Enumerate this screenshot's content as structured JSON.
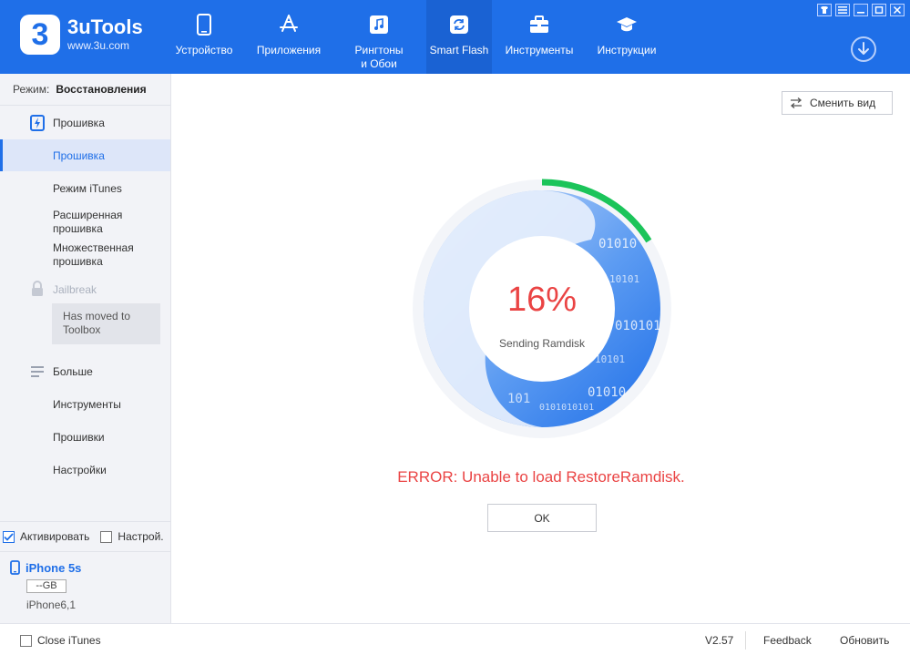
{
  "app": {
    "logo_char": "3",
    "name": "3uTools",
    "url": "www.3u.com"
  },
  "nav": [
    {
      "label": "Устройство",
      "icon": "phone-icon"
    },
    {
      "label": "Приложения",
      "icon": "app-store-icon"
    },
    {
      "label": "Рингтоны\nи Обои",
      "icon": "music-icon"
    },
    {
      "label": "Smart Flash",
      "icon": "refresh-icon",
      "active": true
    },
    {
      "label": "Инструменты",
      "icon": "toolbox-icon"
    },
    {
      "label": "Инструкции",
      "icon": "graduation-cap-icon"
    }
  ],
  "sidebar": {
    "mode_label": "Режим:",
    "mode_value": "Восстановления",
    "items": [
      {
        "label": "Прошивка",
        "icon": "firmware-icon"
      },
      {
        "label": "Прошивка",
        "active": true
      },
      {
        "label": "Режим iTunes"
      },
      {
        "label": "Расширенная прошивка"
      },
      {
        "label": "Множественная прошивка"
      },
      {
        "label": "Jailbreak",
        "icon": "lock-icon",
        "disabled": true
      },
      {
        "label": "Больше",
        "icon": "menu-icon"
      },
      {
        "label": "Инструменты"
      },
      {
        "label": "Прошивки"
      },
      {
        "label": "Настройки"
      }
    ],
    "toolbox_note": "Has moved to Toolbox",
    "activate_label": "Активировать",
    "settings_label": "Настрой."
  },
  "device": {
    "name": "iPhone 5s",
    "capacity": "--GB",
    "model": "iPhone6,1"
  },
  "main": {
    "switch_view_label": "Сменить вид",
    "progress_percent": 16,
    "percent_text": "16%",
    "stage_text": "Sending Ramdisk",
    "binary_texts": [
      "01010",
      "10101",
      "010101",
      "10101",
      "01010",
      "0101010101",
      "101"
    ],
    "error_text": "ERROR: Unable to load RestoreRamdisk.",
    "ok_label": "OK"
  },
  "footer": {
    "close_itunes_label": "Close iTunes",
    "version": "V2.57",
    "feedback_label": "Feedback",
    "update_label": "Обновить"
  },
  "colors": {
    "accent": "#1f6fe8",
    "progress": "#1bc45a",
    "error": "#ea4444"
  }
}
